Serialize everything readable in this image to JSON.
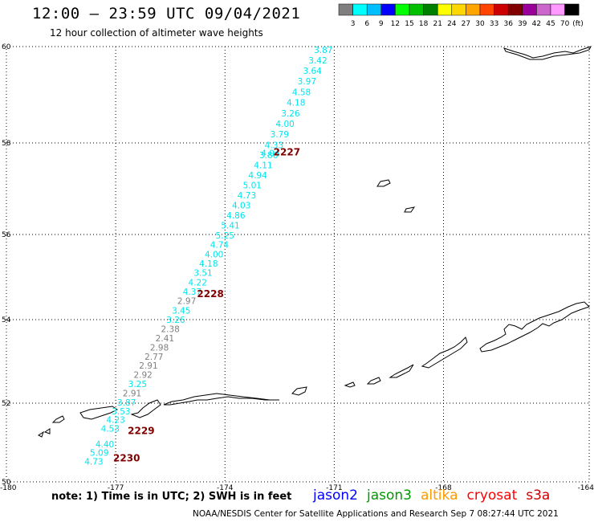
{
  "title": "12:00 — 23:59 UTC 09/04/2021",
  "subtitle": "12 hour collection of altimeter wave heights",
  "color_scale": {
    "labels": [
      "3",
      "6",
      "9",
      "12",
      "15",
      "18",
      "21",
      "24",
      "27",
      "30",
      "33",
      "36",
      "39",
      "42",
      "45",
      "70"
    ],
    "unit": "(ft)",
    "colors": [
      "#7f7f7f",
      "#00ffff",
      "#00bfff",
      "#0000ff",
      "#00ff00",
      "#00c000",
      "#008000",
      "#ffff00",
      "#ffd700",
      "#ffa500",
      "#ff4500",
      "#cc0000",
      "#800000",
      "#990099",
      "#cc66cc",
      "#ff99ff",
      "#000000"
    ]
  },
  "note": "note: 1) Time is in UTC; 2) SWH is in feet",
  "satellites": [
    {
      "name": "jason2",
      "color": "#0000ff"
    },
    {
      "name": "jason3",
      "color": "#009900"
    },
    {
      "name": "altika",
      "color": "#ff9900"
    },
    {
      "name": "cryosat",
      "color": "#ff0000"
    },
    {
      "name": "s3a",
      "color": "#cc0000"
    }
  ],
  "credit": "NOAA/NESDIS Center for Satellite Applications and Research    Sep  7 08:27:44 UTC 2021",
  "chart_data": {
    "type": "scatter",
    "xlim": [
      -180,
      -164
    ],
    "ylim": [
      50,
      60
    ],
    "x_ticks": [
      "-180",
      "-177",
      "-174",
      "-171",
      "-168",
      "-164"
    ],
    "y_ticks": [
      "50",
      "52",
      "54",
      "56",
      "58",
      "60"
    ],
    "grid": true,
    "series": [
      {
        "name": "cryosat",
        "points": [
          {
            "lon": -171.3,
            "lat": 59.93,
            "swh": "3.87",
            "color": "#00e5ee"
          },
          {
            "lon": -171.45,
            "lat": 59.72,
            "swh": "3.42",
            "color": "#00e5ee"
          },
          {
            "lon": -171.6,
            "lat": 59.5,
            "swh": "3.64",
            "color": "#00e5ee"
          },
          {
            "lon": -171.75,
            "lat": 59.28,
            "swh": "3.97",
            "color": "#00e5ee"
          },
          {
            "lon": -171.9,
            "lat": 59.06,
            "swh": "4.58",
            "color": "#00e5ee"
          },
          {
            "lon": -172.05,
            "lat": 58.84,
            "swh": "4.18",
            "color": "#00e5ee"
          },
          {
            "lon": -172.2,
            "lat": 58.62,
            "swh": "3.26",
            "color": "#00e5ee"
          },
          {
            "lon": -172.35,
            "lat": 58.4,
            "swh": "4.00",
            "color": "#00e5ee"
          },
          {
            "lon": -172.5,
            "lat": 58.18,
            "swh": "3.79",
            "color": "#00e5ee"
          },
          {
            "lon": -172.65,
            "lat": 57.96,
            "swh": "4.33",
            "color": "#00e5ee"
          },
          {
            "lon": -172.8,
            "lat": 57.74,
            "swh": "3.86",
            "color": "#00e5ee"
          },
          {
            "lon": -172.75,
            "lat": 57.78,
            "swh": "4.04",
            "color": "#00e5ee"
          },
          {
            "lon": -172.95,
            "lat": 57.52,
            "swh": "4.11",
            "color": "#00e5ee"
          },
          {
            "lon": -173.1,
            "lat": 57.3,
            "swh": "4.94",
            "color": "#00e5ee"
          },
          {
            "lon": -173.25,
            "lat": 57.08,
            "swh": "5.01",
            "color": "#00e5ee"
          },
          {
            "lon": -173.4,
            "lat": 56.86,
            "swh": "4.73",
            "color": "#00e5ee"
          },
          {
            "lon": -173.55,
            "lat": 56.64,
            "swh": "4.03",
            "color": "#00e5ee"
          },
          {
            "lon": -173.7,
            "lat": 56.42,
            "swh": "4.86",
            "color": "#00e5ee"
          },
          {
            "lon": -173.85,
            "lat": 56.2,
            "swh": "5.41",
            "color": "#00e5ee"
          },
          {
            "lon": -174.0,
            "lat": 55.98,
            "swh": "5.25",
            "color": "#00e5ee"
          },
          {
            "lon": -174.15,
            "lat": 55.76,
            "swh": "4.74",
            "color": "#00e5ee"
          },
          {
            "lon": -174.3,
            "lat": 55.54,
            "swh": "4.00",
            "color": "#00e5ee"
          },
          {
            "lon": -174.45,
            "lat": 55.32,
            "swh": "4.18",
            "color": "#00e5ee"
          },
          {
            "lon": -174.6,
            "lat": 55.1,
            "swh": "3.51",
            "color": "#00e5ee"
          },
          {
            "lon": -174.75,
            "lat": 54.88,
            "swh": "4.22",
            "color": "#00e5ee"
          },
          {
            "lon": -174.9,
            "lat": 54.66,
            "swh": "4.37",
            "color": "#00e5ee"
          },
          {
            "lon": -175.05,
            "lat": 54.44,
            "swh": "2.97",
            "color": "#7f7f7f"
          },
          {
            "lon": -175.2,
            "lat": 54.22,
            "swh": "3.45",
            "color": "#00e5ee"
          },
          {
            "lon": -175.35,
            "lat": 54.0,
            "swh": "3.26",
            "color": "#00e5ee"
          },
          {
            "lon": -175.5,
            "lat": 53.78,
            "swh": "2.38",
            "color": "#7f7f7f"
          },
          {
            "lon": -175.65,
            "lat": 53.56,
            "swh": "2.41",
            "color": "#7f7f7f"
          },
          {
            "lon": -175.8,
            "lat": 53.34,
            "swh": "2.98",
            "color": "#7f7f7f"
          },
          {
            "lon": -175.95,
            "lat": 53.12,
            "swh": "2.77",
            "color": "#7f7f7f"
          },
          {
            "lon": -176.1,
            "lat": 52.9,
            "swh": "2.91",
            "color": "#7f7f7f"
          },
          {
            "lon": -176.25,
            "lat": 52.68,
            "swh": "2.92",
            "color": "#7f7f7f"
          },
          {
            "lon": -176.4,
            "lat": 52.46,
            "swh": "3.25",
            "color": "#00e5ee"
          },
          {
            "lon": -176.55,
            "lat": 52.24,
            "swh": "2.91",
            "color": "#7f7f7f"
          },
          {
            "lon": -176.7,
            "lat": 52.02,
            "swh": "3.87",
            "color": "#00e5ee"
          },
          {
            "lon": -176.85,
            "lat": 51.8,
            "swh": "3.53",
            "color": "#00e5ee"
          },
          {
            "lon": -177.0,
            "lat": 51.58,
            "swh": "4.23",
            "color": "#00e5ee"
          },
          {
            "lon": -177.15,
            "lat": 51.36,
            "swh": "4.53",
            "color": "#00e5ee"
          },
          {
            "lon": -177.3,
            "lat": 50.96,
            "swh": "4.40",
            "color": "#00e5ee"
          },
          {
            "lon": -177.45,
            "lat": 50.74,
            "swh": "5.09",
            "color": "#00e5ee"
          },
          {
            "lon": -177.6,
            "lat": 50.52,
            "swh": "4.73",
            "color": "#00e5ee"
          }
        ]
      }
    ],
    "time_labels": [
      {
        "text": "2227",
        "lon": -172.3,
        "lat": 57.8,
        "color": "#800000"
      },
      {
        "text": "2228",
        "lon": -174.4,
        "lat": 54.6,
        "color": "#800000"
      },
      {
        "text": "2229",
        "lon": -176.3,
        "lat": 51.3,
        "color": "#800000"
      },
      {
        "text": "2230",
        "lon": -176.7,
        "lat": 50.6,
        "color": "#800000"
      }
    ]
  }
}
